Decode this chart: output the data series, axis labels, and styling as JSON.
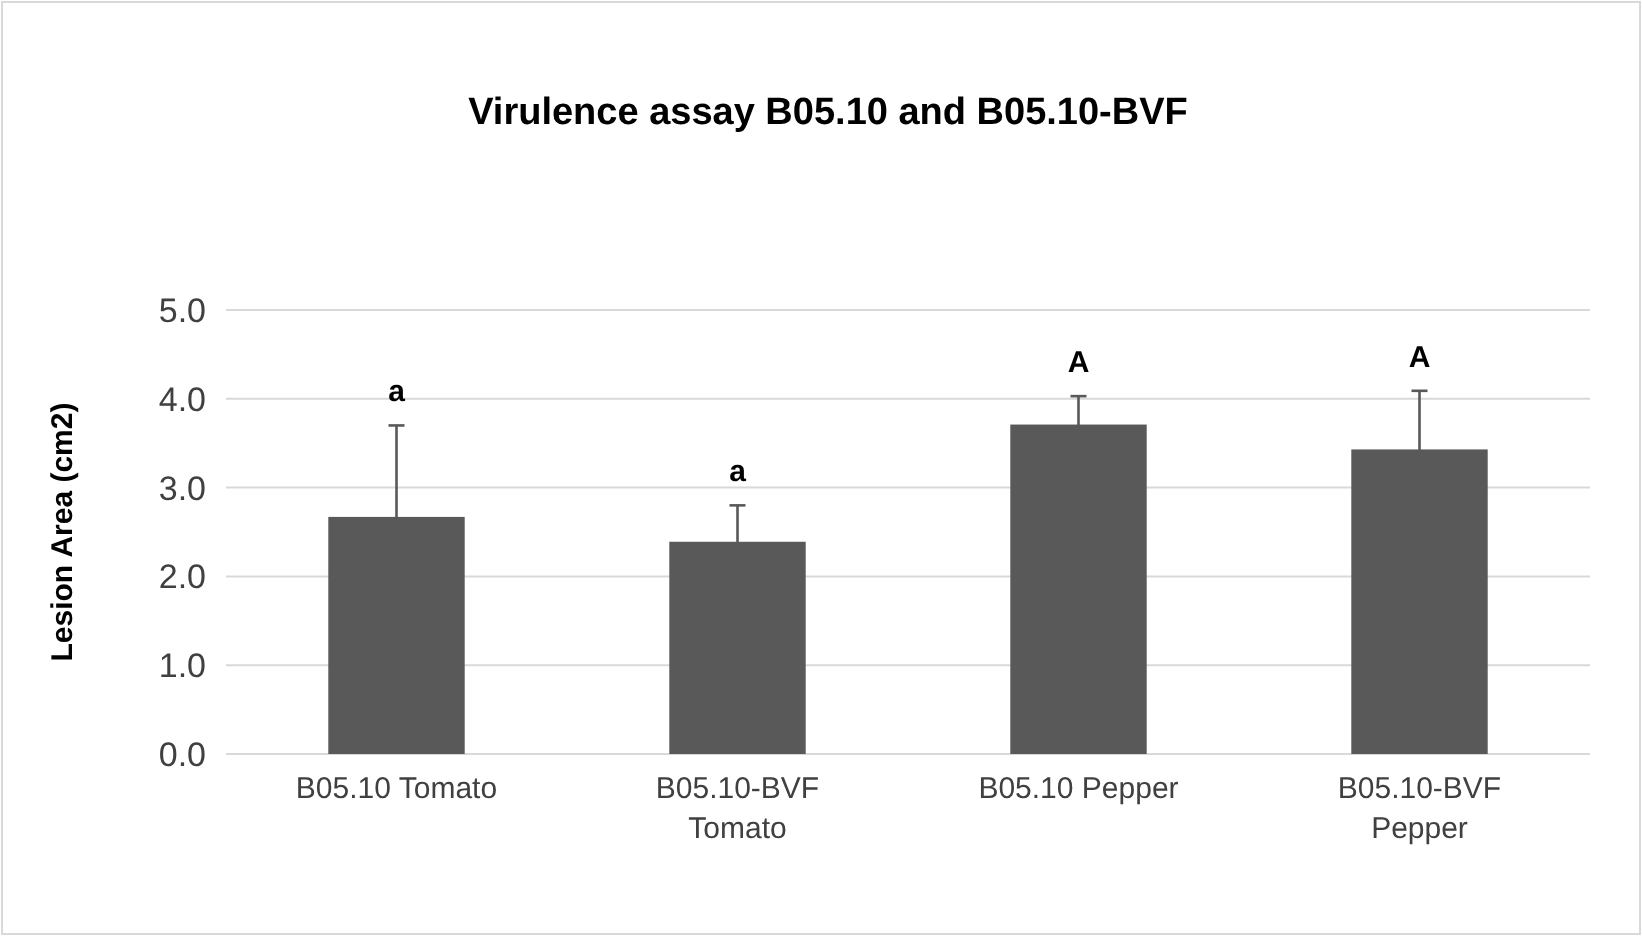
{
  "chart_data": {
    "type": "bar",
    "title": "Virulence assay B05.10 and B05.10-BVF",
    "ylabel": "Lesion Area (cm2)",
    "categories": [
      "B05.10 Tomato",
      "B05.10-BVF Tomato",
      "B05.10 Pepper",
      "B05.10-BVF Pepper"
    ],
    "values": [
      2.67,
      2.39,
      3.71,
      3.43
    ],
    "errors": [
      1.03,
      0.41,
      0.32,
      0.66
    ],
    "color": "#595959",
    "ylim": [
      0,
      5
    ],
    "yticks": [
      {
        "value": 0,
        "label": "0.0"
      },
      {
        "value": 1,
        "label": "1.0"
      },
      {
        "value": 2,
        "label": "2.0"
      },
      {
        "value": 3,
        "label": "3.0"
      },
      {
        "value": 4,
        "label": "4.0"
      },
      {
        "value": 5,
        "label": "5.0"
      }
    ],
    "grid": "y",
    "annotations": [
      {
        "text": "a",
        "x": "B05.10 Tomato",
        "y": 3.7
      },
      {
        "text": "a",
        "x": "B05.10-BVF Tomato",
        "y": 2.8
      },
      {
        "text": "A",
        "x": "B05.10 Pepper",
        "y": 4.03
      },
      {
        "text": "A",
        "x": "B05.10-BVF Pepper",
        "y": 4.09
      }
    ]
  }
}
